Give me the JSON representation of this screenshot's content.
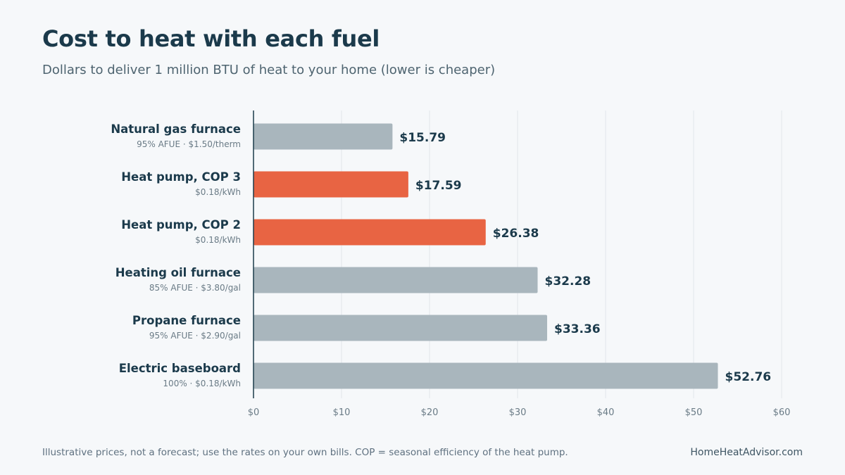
{
  "header": {
    "title": "Cost to heat with each fuel",
    "subtitle": "Dollars to deliver 1 million BTU of heat to your home (lower is cheaper)"
  },
  "footer": {
    "note": "Illustrative prices, not a forecast; use the rates on your own bills. COP = seasonal efficiency of the heat pump.",
    "source": "HomeHeatAdvisor.com"
  },
  "colors": {
    "default_bar": "#a9b6bd",
    "highlight_bar": "#e86443",
    "label": "#1b3a4b",
    "sublabel": "#6a7b86",
    "value": "#1b3a4b",
    "tick": "#6a7b86",
    "grid": "#e1e6ea",
    "axis": "#1b3a4b"
  },
  "chart_data": {
    "type": "bar",
    "orientation": "horizontal",
    "title": "Cost to heat with each fuel",
    "subtitle": "Dollars to deliver 1 million BTU of heat to your home (lower is cheaper)",
    "categories": [
      "Natural gas furnace",
      "Heat pump, COP 3",
      "Heat pump, COP 2",
      "Heating oil furnace",
      "Propane furnace",
      "Electric baseboard"
    ],
    "sublabels": [
      "95% AFUE · $1.50/therm",
      "$0.18/kWh",
      "$0.18/kWh",
      "85% AFUE · $3.80/gal",
      "95% AFUE · $2.90/gal",
      "100% · $0.18/kWh"
    ],
    "values": [
      15.79,
      17.59,
      26.38,
      32.28,
      33.36,
      52.76
    ],
    "value_labels": [
      "$15.79",
      "$17.59",
      "$26.38",
      "$32.28",
      "$33.36",
      "$52.76"
    ],
    "highlighted": [
      false,
      true,
      true,
      false,
      false,
      false
    ],
    "xlim": [
      0,
      60
    ],
    "xticks": [
      0,
      10,
      20,
      30,
      40,
      50,
      60
    ],
    "xtick_labels": [
      "$0",
      "$10",
      "$20",
      "$30",
      "$40",
      "$50",
      "$60"
    ],
    "xlabel": "",
    "ylabel": "",
    "grid": true
  }
}
